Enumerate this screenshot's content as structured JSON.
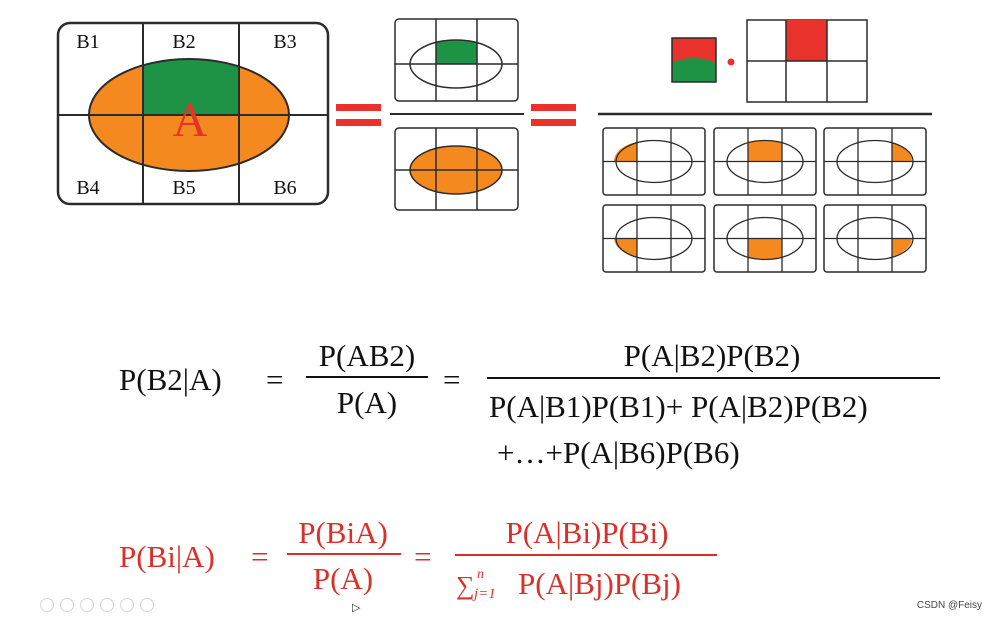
{
  "colors": {
    "orange": "#F4891F",
    "green": "#1E9345",
    "red": "#E8322B",
    "stroke": "#2b2b2b",
    "formula_red": "#D9312A"
  },
  "diagram": {
    "cell_labels": [
      "B1",
      "B2",
      "B3",
      "B4",
      "B5",
      "B6"
    ],
    "event_label": "A"
  },
  "formula1": {
    "lhs": "P(B2|A)",
    "eq1": "=",
    "frac_num": "P(AB2)",
    "frac_den": "P(A)",
    "eq2": "=",
    "num": "P(A|B2)P(B2)",
    "den_line1": "P(A|B1)P(B1)+ P(A|B2)P(B2)",
    "den_line2": "+…+P(A|B6)P(B6)"
  },
  "formula2": {
    "lhs": "P(Bi|A)",
    "eq1": "=",
    "frac_num": "P(BiA)",
    "frac_den": "P(A)",
    "eq2": "=",
    "num": "P(A|Bi)P(Bi)",
    "sum_symbol": "∑",
    "sum_sup": "n",
    "sum_sub": "j=1",
    "den_rest": "P(A|Bj)P(Bj)"
  },
  "footer": {
    "watermark": "CSDN @Feisy",
    "cursor": "▷"
  }
}
